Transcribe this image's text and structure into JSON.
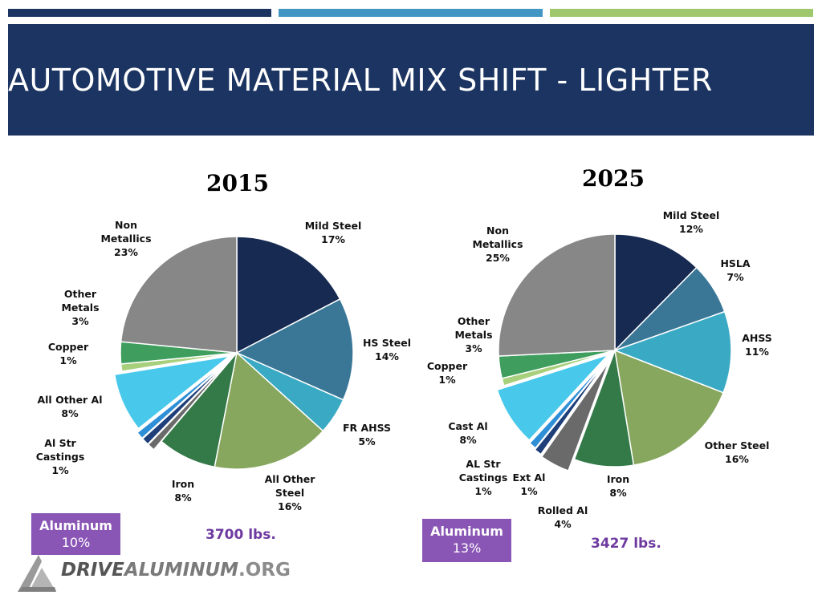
{
  "header": {
    "title": "AUTOMOTIVE MATERIAL MIX SHIFT - LIGHTER",
    "stripe_colors": [
      "#1c3461",
      "#4196c4",
      "#9ec86b"
    ],
    "banner_color": "#1c3461"
  },
  "chart_data": [
    {
      "type": "pie",
      "title": "2015",
      "slices": [
        {
          "name": [
            "Mild Steel"
          ],
          "value": 17,
          "label": "17%",
          "color": "#172a52"
        },
        {
          "name": [
            "HS  Steel"
          ],
          "value": 14,
          "label": "14%",
          "color": "#3a7797"
        },
        {
          "name": [
            "FR AHSS"
          ],
          "value": 5,
          "label": "5%",
          "color": "#3aaac4"
        },
        {
          "name": [
            "All Other",
            "Steel"
          ],
          "value": 16,
          "label": "16%",
          "color": "#87a75f"
        },
        {
          "name": [
            "Iron"
          ],
          "value": 8,
          "label": "8%",
          "color": "#347a48"
        },
        {
          "name": [],
          "value": 1,
          "label": "",
          "color": "#6a6a6a"
        },
        {
          "name": [
            "Al Str",
            "Castings"
          ],
          "value": 1,
          "label": "1%",
          "color": "#1e3f7a"
        },
        {
          "name": [],
          "value": 1,
          "label": "",
          "color": "#2f8fd6"
        },
        {
          "name": [
            "All Other Al"
          ],
          "value": 8,
          "label": "8%",
          "color": "#48c8ea"
        },
        {
          "name": [
            "Copper"
          ],
          "value": 1,
          "label": "1%",
          "color": "#a8d07c"
        },
        {
          "name": [
            "Other",
            "Metals"
          ],
          "value": 3,
          "label": "3%",
          "color": "#3f9e5e"
        },
        {
          "name": [
            "Non",
            "Metallics"
          ],
          "value": 23,
          "label": "23%",
          "color": "#878787"
        }
      ],
      "aluminum_box": {
        "label": "Aluminum",
        "value": "10%"
      },
      "total_weight": "3700 lbs."
    },
    {
      "type": "pie",
      "title": "2025",
      "slices": [
        {
          "name": [
            "Mild Steel"
          ],
          "value": 12,
          "label": "12%",
          "color": "#172a52"
        },
        {
          "name": [
            "HSLA"
          ],
          "value": 7,
          "label": "7%",
          "color": "#3a7797"
        },
        {
          "name": [
            "AHSS"
          ],
          "value": 11,
          "label": "11%",
          "color": "#3aaac4"
        },
        {
          "name": [
            "Other Steel"
          ],
          "value": 16,
          "label": "16%",
          "color": "#87a75f"
        },
        {
          "name": [
            "Iron"
          ],
          "value": 8,
          "label": "8%",
          "color": "#347a48"
        },
        {
          "name": [
            "Rolled Al"
          ],
          "value": 4,
          "label": "4%",
          "color": "#6a6a6a"
        },
        {
          "name": [
            "Ext Al"
          ],
          "value": 1,
          "label": "1%",
          "color": "#1e3f7a"
        },
        {
          "name": [
            "AL Str",
            "Castings"
          ],
          "value": 1,
          "label": "1%",
          "color": "#2f8fd6"
        },
        {
          "name": [
            "Cast Al"
          ],
          "value": 8,
          "label": "8%",
          "color": "#48c8ea"
        },
        {
          "name": [
            "Copper"
          ],
          "value": 1,
          "label": "1%",
          "color": "#a8d07c"
        },
        {
          "name": [
            "Other",
            "Metals"
          ],
          "value": 3,
          "label": "3%",
          "color": "#3f9e5e"
        },
        {
          "name": [
            "Non",
            "Metallics"
          ],
          "value": 25,
          "label": "25%",
          "color": "#878787"
        }
      ],
      "aluminum_box": {
        "label": "Aluminum",
        "value": "13%"
      },
      "total_weight": "3427 lbs."
    }
  ],
  "footer": {
    "logo_part1": "DRIVE",
    "logo_part2": "ALUMINUM",
    "logo_part3": ".ORG"
  }
}
